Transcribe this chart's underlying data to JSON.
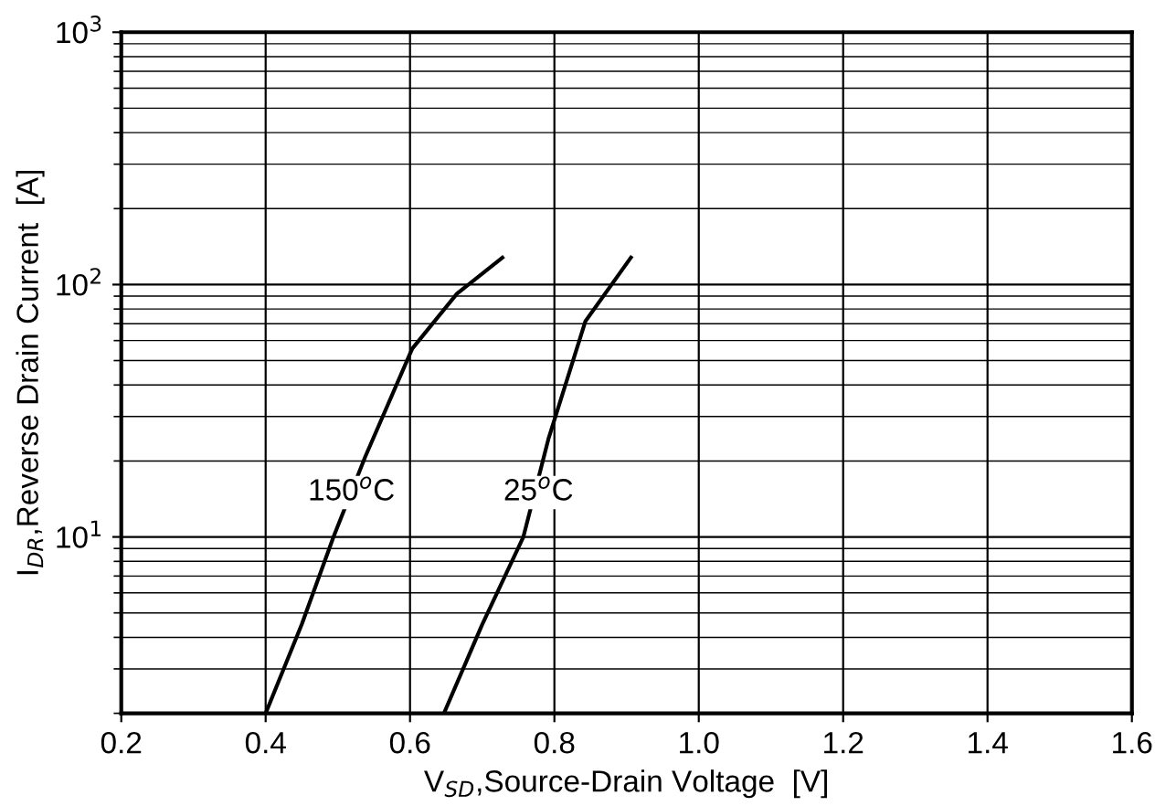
{
  "chart_data": {
    "type": "line",
    "xlabel": "V$_{SD}$,Source-Drain Voltage  [V]",
    "ylabel": "I$_{DR}$,Reverse Drain Current  [A]",
    "log": "y",
    "xlim": [
      0.2,
      1.6
    ],
    "ylim": [
      2,
      1000
    ],
    "xticks": [
      0.2,
      0.4,
      0.6,
      0.8,
      {
        "value": 1,
        "label": "1.0"
      },
      1.2,
      1.4,
      1.6
    ],
    "yticks": [
      {
        "value": 10,
        "label": "10$^{1}$"
      },
      {
        "value": 100,
        "label": "10$^{2}$"
      },
      {
        "value": 1000,
        "label": "10$^{3}$"
      }
    ],
    "grid": true,
    "line_style": "solid",
    "marker": "none",
    "series": [
      {
        "color": "#000000",
        "x": [
          0.4,
          0.45,
          0.494,
          0.538,
          0.603,
          0.665,
          0.728
        ],
        "values": [
          2,
          4.5,
          10,
          20.8,
          55.7,
          92,
          128
        ]
      },
      {
        "color": "#000000",
        "x": [
          0.647,
          0.7,
          0.757,
          0.792,
          0.843,
          0.906
        ],
        "values": [
          2,
          4.5,
          10,
          24.6,
          71.6,
          128
        ]
      }
    ],
    "annotations": [
      {
        "text": "150$^{o}$C",
        "x": 0.519,
        "y": 15
      },
      {
        "text": "25$^{o}$C",
        "x": 0.778,
        "y": 15
      }
    ]
  }
}
